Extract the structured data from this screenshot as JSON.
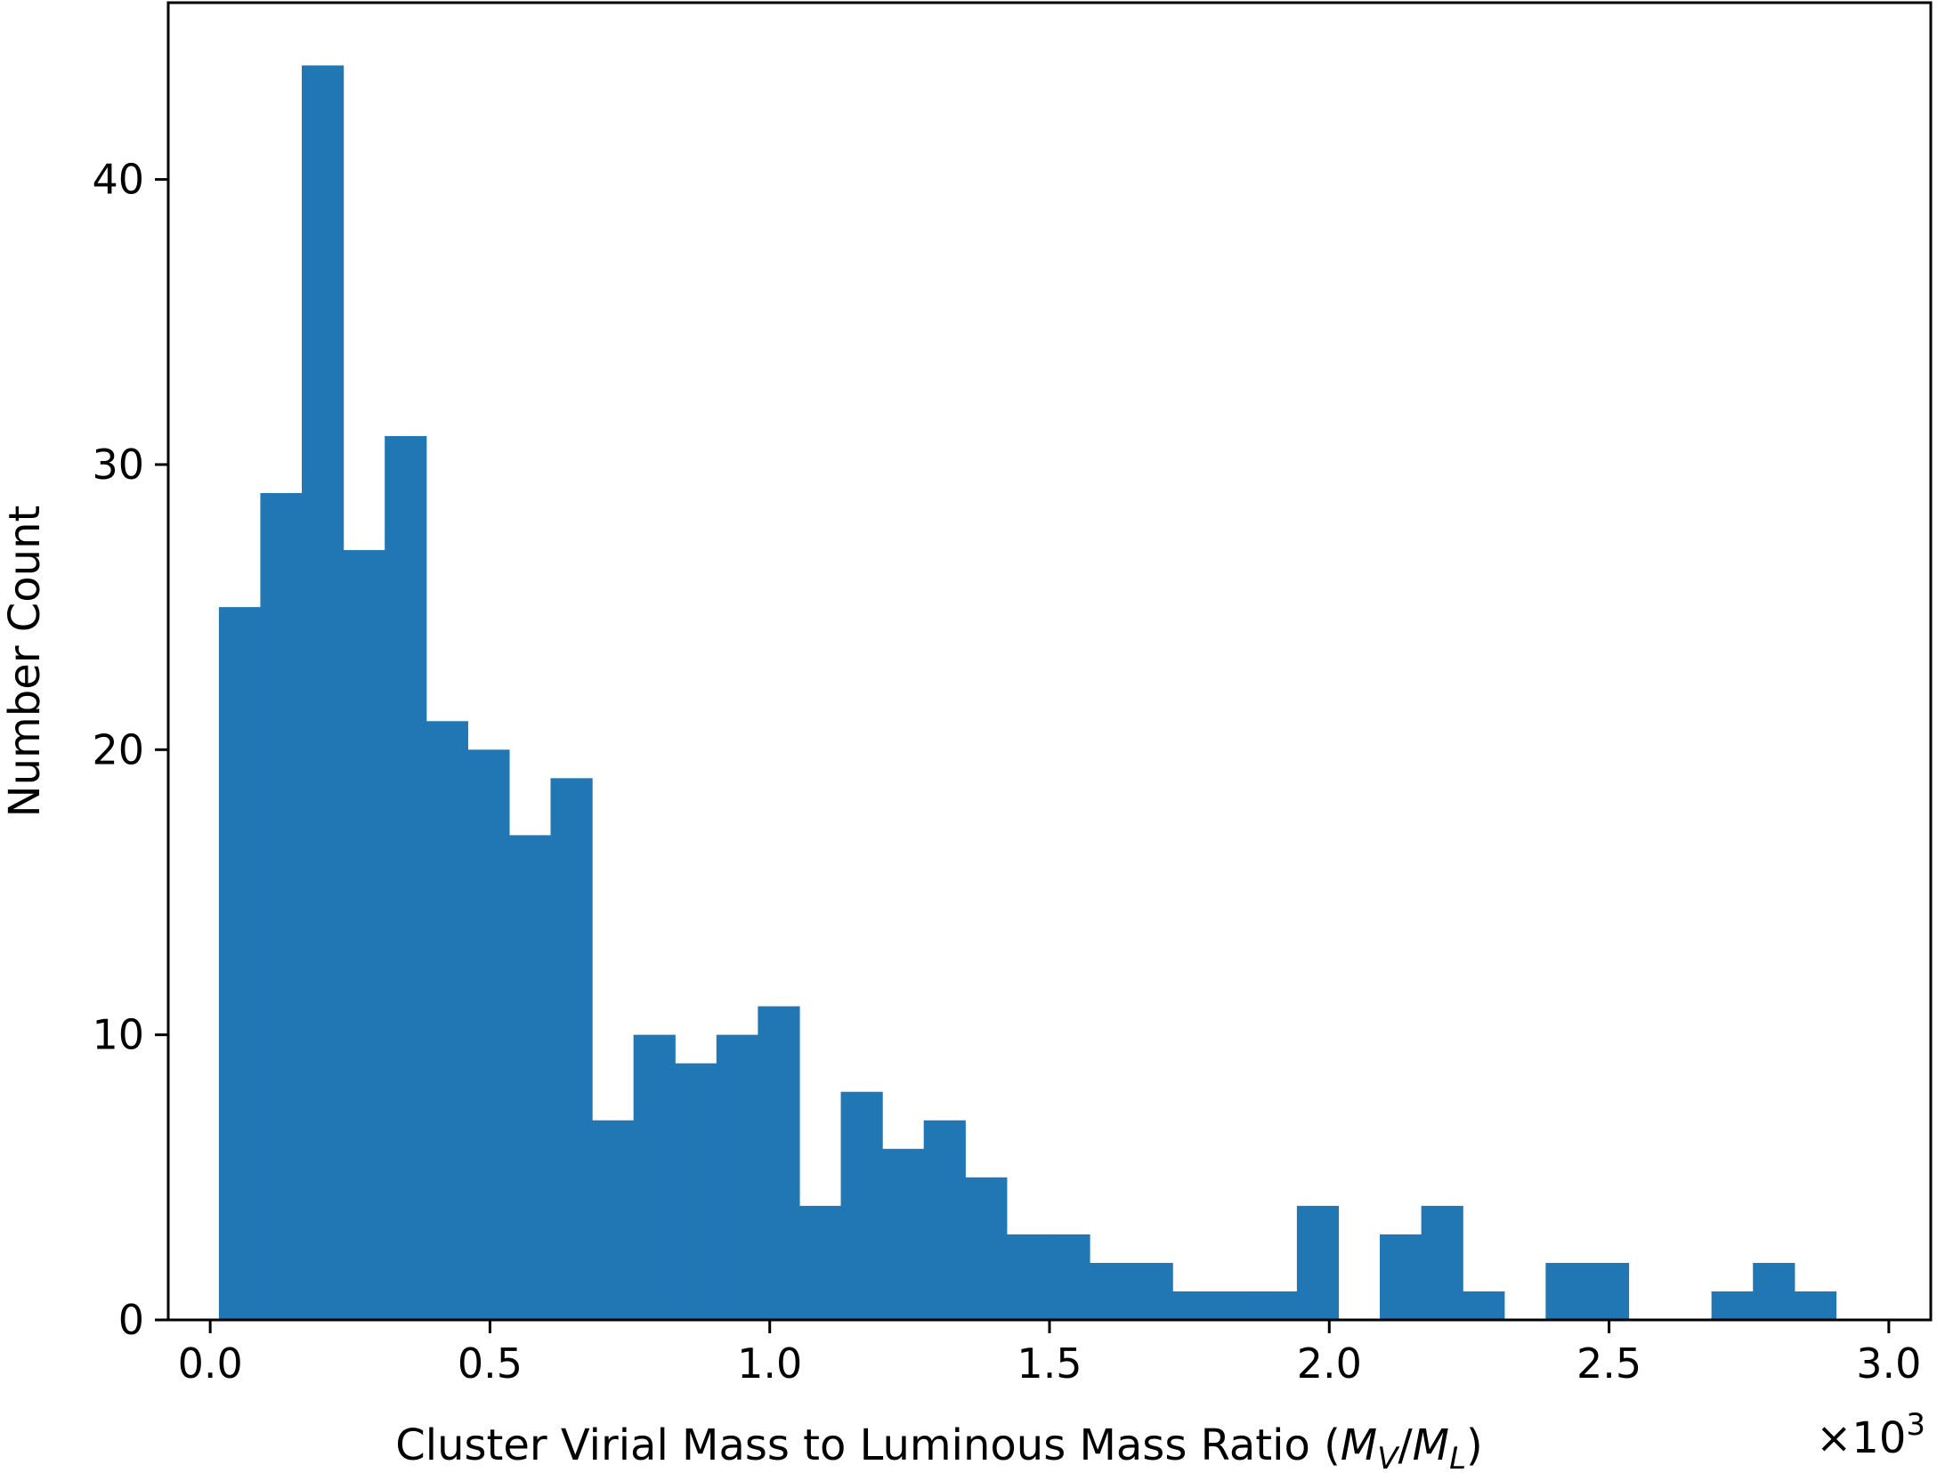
{
  "chart_data": {
    "type": "histogram",
    "xlabel": "Cluster Virial Mass to Luminous Mass Ratio (",
    "xlabel_math": {
      "M": "M",
      "V": "V",
      "slash": "/",
      "L": "L",
      "close": ")"
    },
    "ylabel": "Number Count",
    "x_scale_note": {
      "prefix": "×10",
      "exponent": "3"
    },
    "x_unit_multiplier": 1000,
    "xlim": [
      -0.075,
      3.075
    ],
    "ylim": [
      0,
      46.2
    ],
    "xticks": [
      0.0,
      0.5,
      1.0,
      1.5,
      2.0,
      2.5,
      3.0
    ],
    "xtick_labels": [
      "0.0",
      "0.5",
      "1.0",
      "1.5",
      "2.0",
      "2.5",
      "3.0"
    ],
    "yticks": [
      0,
      10,
      20,
      30,
      40
    ],
    "ytick_labels": [
      "0",
      "10",
      "20",
      "30",
      "40"
    ],
    "bin_start": 0.0155,
    "bin_width": 0.0741,
    "counts": [
      25,
      29,
      44,
      27,
      31,
      21,
      20,
      17,
      19,
      7,
      10,
      9,
      10,
      11,
      4,
      8,
      6,
      7,
      5,
      3,
      3,
      2,
      2,
      1,
      1,
      1,
      4,
      0,
      3,
      4,
      1,
      0,
      2,
      2,
      0,
      0,
      1,
      2,
      1
    ],
    "bar_color": "#2077b4",
    "grid": false
  }
}
